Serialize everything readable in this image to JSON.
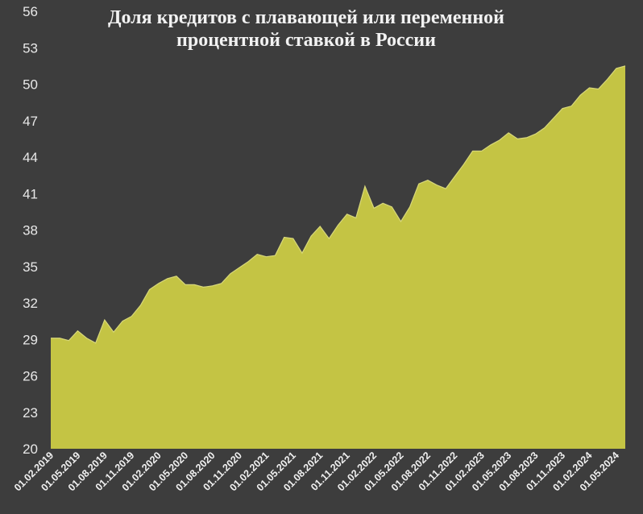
{
  "chart_data": {
    "type": "area",
    "title_lines": [
      "Доля кредитов с плавающей или переменной",
      "процентной ставкой в России"
    ],
    "xlabel": "",
    "ylabel": "",
    "ylim": [
      20,
      56
    ],
    "yticks": [
      20,
      23,
      26,
      29,
      32,
      35,
      38,
      41,
      44,
      47,
      50,
      53,
      56
    ],
    "xtick_labels": [
      "01.02.2019",
      "01.05.2019",
      "01.08.2019",
      "01.11.2019",
      "01.02.2020",
      "01.05.2020",
      "01.08.2020",
      "01.11.2020",
      "01.02.2021",
      "01.05.2021",
      "01.08.2021",
      "01.11.2021",
      "01.02.2022",
      "01.05.2022",
      "01.08.2022",
      "01.11.2022",
      "01.02.2023",
      "01.05.2023",
      "01.08.2023",
      "01.11.2023",
      "01.02.2024",
      "01.05.2024"
    ],
    "grid": false,
    "legend": "none",
    "colors": {
      "background": "#3d3d3d",
      "area": "#c4c444",
      "line": "#d8d87a"
    },
    "x": [
      "2019-02",
      "2019-03",
      "2019-04",
      "2019-05",
      "2019-06",
      "2019-07",
      "2019-08",
      "2019-09",
      "2019-10",
      "2019-11",
      "2019-12",
      "2020-01",
      "2020-02",
      "2020-03",
      "2020-04",
      "2020-05",
      "2020-06",
      "2020-07",
      "2020-08",
      "2020-09",
      "2020-10",
      "2020-11",
      "2020-12",
      "2021-01",
      "2021-02",
      "2021-03",
      "2021-04",
      "2021-05",
      "2021-06",
      "2021-07",
      "2021-08",
      "2021-09",
      "2021-10",
      "2021-11",
      "2021-12",
      "2022-01",
      "2022-02",
      "2022-03",
      "2022-04",
      "2022-05",
      "2022-06",
      "2022-07",
      "2022-08",
      "2022-09",
      "2022-10",
      "2022-11",
      "2022-12",
      "2023-01",
      "2023-02",
      "2023-03",
      "2023-04",
      "2023-05",
      "2023-06",
      "2023-07",
      "2023-08",
      "2023-09",
      "2023-10",
      "2023-11",
      "2023-12",
      "2024-01",
      "2024-02",
      "2024-03",
      "2024-04",
      "2024-05",
      "2024-06"
    ],
    "values": [
      29.1,
      29.1,
      28.9,
      29.7,
      29.1,
      28.7,
      30.6,
      29.6,
      30.5,
      30.9,
      31.8,
      33.1,
      33.6,
      34.0,
      34.2,
      33.5,
      33.5,
      33.3,
      33.4,
      33.6,
      34.4,
      34.9,
      35.4,
      36.0,
      35.8,
      35.9,
      37.4,
      37.3,
      36.1,
      37.5,
      38.3,
      37.3,
      38.4,
      39.3,
      39.0,
      41.6,
      39.8,
      40.2,
      39.9,
      38.7,
      39.9,
      41.8,
      42.1,
      41.7,
      41.4,
      42.4,
      43.4,
      44.5,
      44.5,
      45.0,
      45.4,
      46.0,
      45.5,
      45.6,
      45.9,
      46.4,
      47.2,
      48.0,
      48.2,
      49.1,
      49.7,
      49.6,
      50.4,
      51.3,
      51.5
    ]
  }
}
